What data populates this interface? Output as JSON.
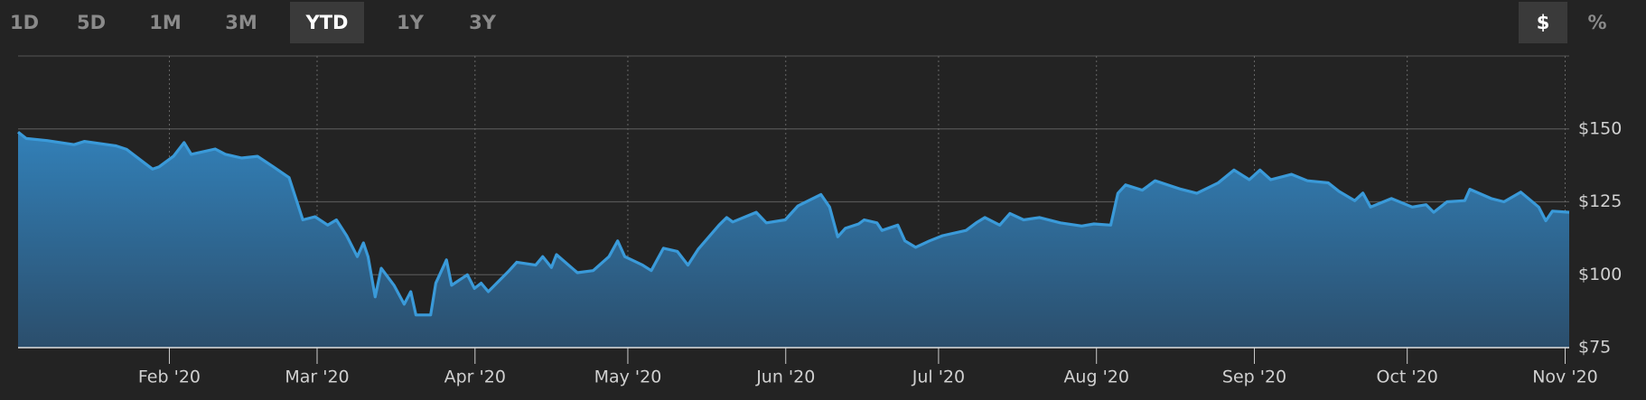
{
  "toolbar": {
    "ranges": [
      "1D",
      "5D",
      "1M",
      "3M",
      "YTD",
      "1Y",
      "3Y"
    ],
    "selected_range": "YTD",
    "units": [
      "$",
      "%"
    ],
    "selected_unit": "$"
  },
  "chart_data": {
    "type": "area",
    "color": "#3a9ad9",
    "x": [
      2.3,
      3.9,
      8,
      13.3,
      15.3,
      21.5,
      23.6,
      26.6,
      28.7,
      30,
      32.8,
      34.9,
      36.3,
      41,
      43,
      46.2,
      49.3,
      52.4,
      55.5,
      58.2,
      60.6,
      63.1,
      64.8,
      66.8,
      68.9,
      70.1,
      71,
      72.4,
      73.6,
      76.1,
      78.1,
      79.4,
      80.4,
      83.3,
      84.3,
      86.4,
      87.4,
      90.5,
      91.9,
      93.2,
      94.6,
      98.7,
      100.2,
      103.9,
      105.3,
      107,
      108,
      112.1,
      115.2,
      118.3,
      120,
      121.4,
      124.9,
      126.6,
      129,
      131.7,
      133.8,
      135.8,
      139.9,
      141.4,
      142.6,
      147.2,
      149.2,
      152.9,
      155.4,
      159.9,
      161.6,
      163.2,
      164.7,
      167.3,
      168.4,
      170.9,
      171.9,
      175,
      176.4,
      178.5,
      181.2,
      183.8,
      188.4,
      190.4,
      192.1,
      195,
      197,
      199.7,
      202.8,
      206.9,
      211.1,
      213.5,
      216.8,
      218.2,
      219.7,
      223,
      225.5,
      230.6,
      233.7,
      237.9,
      241,
      244,
      246.1,
      248.2,
      252.3,
      255.4,
      259.5,
      261.6,
      264.7,
      266.3,
      267.8,
      271.9,
      276,
      278.7,
      280.2,
      282.8,
      286.3,
      287.3,
      291.5,
      294,
      297.3,
      300.8,
      302.2,
      303.5,
      306.8
    ],
    "values": [
      148.9,
      146.7,
      146,
      144.6,
      145.7,
      144.2,
      143,
      139,
      136.2,
      137,
      140.6,
      145.3,
      141.3,
      143.1,
      141.3,
      140,
      140.6,
      137,
      133.3,
      118.8,
      119.9,
      117,
      118.8,
      113.4,
      106.2,
      110.9,
      106.2,
      92.4,
      102.2,
      96.4,
      89.9,
      94.2,
      86.2,
      86.2,
      97.1,
      105.1,
      96.4,
      100,
      95.3,
      97.1,
      94.2,
      101.4,
      104.3,
      103.3,
      106.2,
      102.5,
      106.9,
      100.7,
      101.4,
      106.2,
      111.6,
      106.2,
      103.3,
      101.4,
      109.1,
      108,
      103.3,
      108.7,
      117,
      119.6,
      118.1,
      121.4,
      117.8,
      118.8,
      123.6,
      127.5,
      123.2,
      113,
      115.9,
      117.4,
      118.8,
      117.8,
      115.2,
      117,
      111.6,
      109.4,
      111.6,
      113.4,
      115.2,
      117.8,
      119.6,
      117,
      121,
      118.8,
      119.6,
      117.8,
      116.7,
      117.4,
      117,
      127.9,
      130.8,
      129,
      132.2,
      129.3,
      127.9,
      131.5,
      135.9,
      132.6,
      135.9,
      132.6,
      134.4,
      132.2,
      131.5,
      128.6,
      125.4,
      128,
      123.2,
      126.1,
      123.2,
      124,
      121.4,
      125,
      125.4,
      129.3,
      126.1,
      125,
      128.3,
      123.2,
      118.5,
      121.8,
      121.4
    ],
    "xlim": [
      2.3,
      306.8
    ],
    "xticks": [
      {
        "value": 32,
        "label": "Feb '20"
      },
      {
        "value": 61,
        "label": "Mar '20"
      },
      {
        "value": 92,
        "label": "Apr '20"
      },
      {
        "value": 122,
        "label": "May '20"
      },
      {
        "value": 153,
        "label": "Jun '20"
      },
      {
        "value": 183,
        "label": "Jul '20"
      },
      {
        "value": 214,
        "label": "Aug '20"
      },
      {
        "value": 245,
        "label": "Sep '20"
      },
      {
        "value": 275,
        "label": "Oct '20"
      },
      {
        "value": 306,
        "label": "Nov '20"
      }
    ],
    "ylim": [
      75,
      175
    ],
    "yticks": [
      {
        "value": 75,
        "label": "$75"
      },
      {
        "value": 100,
        "label": "$100"
      },
      {
        "value": 125,
        "label": "$125"
      },
      {
        "value": 150,
        "label": "$150"
      }
    ],
    "grid": true
  }
}
